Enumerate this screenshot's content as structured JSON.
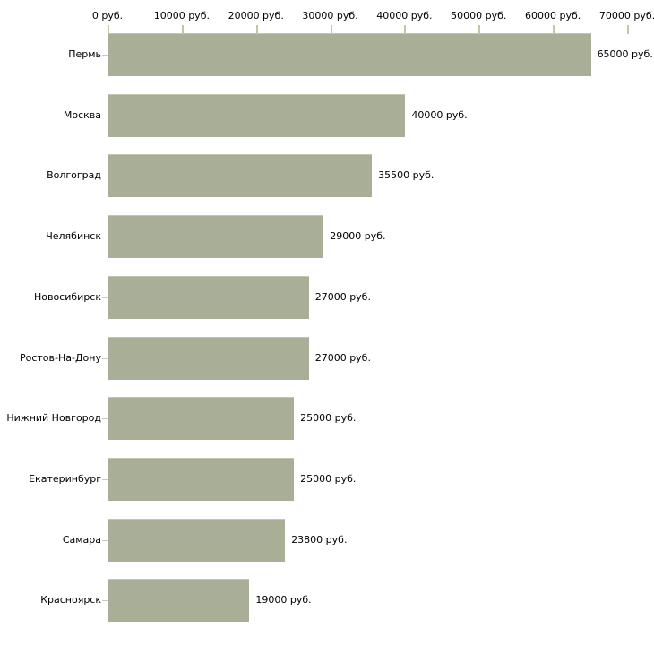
{
  "chart_data": {
    "type": "bar",
    "orientation": "horizontal",
    "title": "",
    "xlabel": "",
    "ylabel": "",
    "grid": false,
    "legend": "none",
    "categories": [
      "Пермь",
      "Москва",
      "Волгоград",
      "Челябинск",
      "Новосибирск",
      "Ростов-На-Дону",
      "Нижний Новгород",
      "Екатеринбург",
      "Самара",
      "Красноярск"
    ],
    "values": [
      65000,
      40000,
      35500,
      29000,
      27000,
      27000,
      25000,
      25000,
      23800,
      19000
    ],
    "value_labels": [
      "65000 руб.",
      "40000 руб.",
      "35500 руб.",
      "29000 руб.",
      "27000 руб.",
      "27000 руб.",
      "25000 руб.",
      "25000 руб.",
      "23800 руб.",
      "19000 руб."
    ],
    "x_axis": {
      "range": [
        0,
        70000
      ],
      "tick_values": [
        0,
        10000,
        20000,
        30000,
        40000,
        50000,
        60000,
        70000
      ],
      "tick_labels": [
        "0 руб.",
        "10000 руб.",
        "20000 руб.",
        "30000 руб.",
        "40000 руб.",
        "50000 руб.",
        "60000 руб.",
        "70000 руб."
      ],
      "position": "top",
      "unit": "руб."
    },
    "colors": {
      "bar": "#a9ae97",
      "axis_line": "#c8c8c4",
      "axis_tick": "#c3c7a3",
      "category_tick": "#c9c9bd",
      "text": "#000000",
      "background": "#ffffff"
    }
  }
}
